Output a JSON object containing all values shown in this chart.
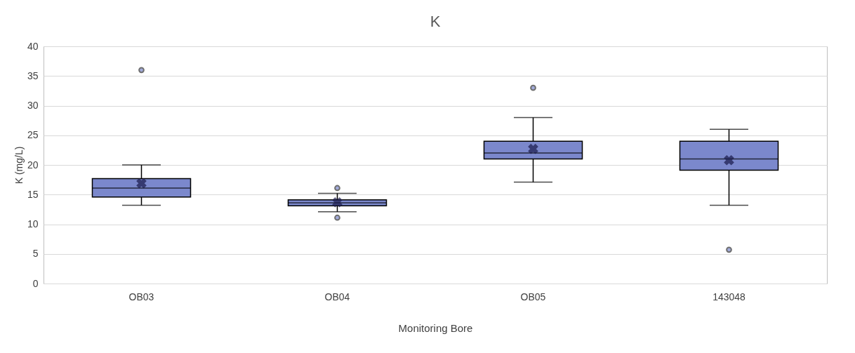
{
  "chart_data": {
    "type": "box",
    "title": "K",
    "xlabel": "Monitoring Bore",
    "ylabel": "K (mg/L)",
    "categories": [
      "OB03",
      "OB04",
      "OB05",
      "143048"
    ],
    "color": "#7b88cc",
    "ylim": [
      0,
      40
    ],
    "yticks": [
      0,
      5,
      10,
      15,
      20,
      25,
      30,
      35,
      40
    ],
    "grid": "y",
    "boxes": [
      {
        "low": 13.2,
        "q1": 14.6,
        "median": 16.1,
        "q3": 17.7,
        "high": 20,
        "mean": 16.9,
        "outliers": [
          36
        ]
      },
      {
        "low": 12.1,
        "q1": 13.1,
        "median": 13.6,
        "q3": 14.1,
        "high": 15.2,
        "mean": 13.7,
        "outliers": [
          16.1,
          11.1
        ]
      },
      {
        "low": 17.1,
        "q1": 21,
        "median": 22,
        "q3": 24,
        "high": 28,
        "mean": 22.7,
        "outliers": [
          33
        ]
      },
      {
        "low": 13.2,
        "q1": 19.1,
        "median": 21,
        "q3": 24,
        "high": 26,
        "mean": 20.8,
        "outliers": [
          5.7
        ]
      }
    ]
  }
}
